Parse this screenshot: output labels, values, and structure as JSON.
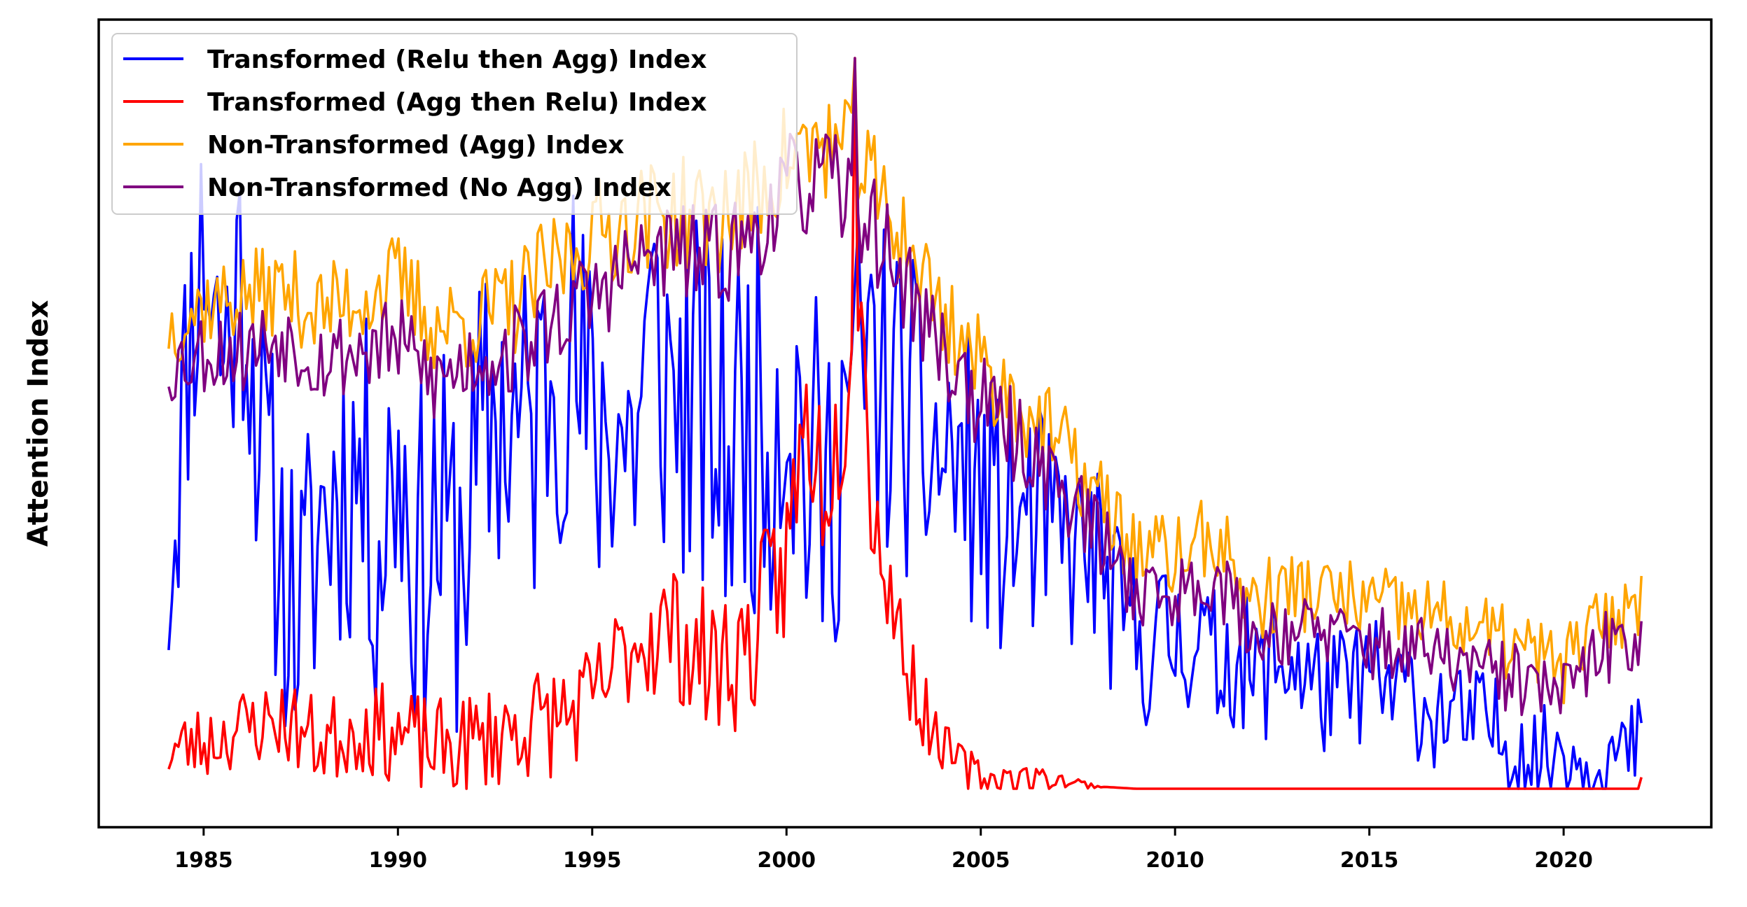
{
  "chart_data": {
    "type": "line",
    "title": "",
    "xlabel": "",
    "ylabel": "Attention Index",
    "xlim": [
      1982.3,
      2023.8
    ],
    "ylim": [
      -0.05,
      1.0
    ],
    "y_tick_labels_shown": false,
    "grid": false,
    "legend_position": "upper-left",
    "x_ticks": [
      1985,
      1990,
      1995,
      2000,
      2005,
      2010,
      2015,
      2020
    ],
    "x_tick_labels": [
      "1985",
      "1990",
      "1995",
      "2000",
      "2005",
      "2010",
      "2015",
      "2020"
    ],
    "start_year": 1984.1,
    "step_years": 0.0833,
    "series": [
      {
        "name": "Transformed (Relu then Agg) Index",
        "color": "#0000ff",
        "anchors": [
          [
            1984.1,
            0.28
          ],
          [
            1984.3,
            0.4
          ],
          [
            1984.7,
            0.62
          ],
          [
            1985.0,
            0.72
          ],
          [
            1985.5,
            0.56
          ],
          [
            1986.0,
            0.68
          ],
          [
            1986.5,
            0.44
          ],
          [
            1987.0,
            0.3
          ],
          [
            1987.5,
            0.22
          ],
          [
            1988.0,
            0.35
          ],
          [
            1988.5,
            0.4
          ],
          [
            1989.0,
            0.42
          ],
          [
            1989.5,
            0.31
          ],
          [
            1990.0,
            0.45
          ],
          [
            1990.5,
            0.28
          ],
          [
            1991.0,
            0.35
          ],
          [
            1991.5,
            0.3
          ],
          [
            1992.0,
            0.4
          ],
          [
            1992.5,
            0.5
          ],
          [
            1993.0,
            0.47
          ],
          [
            1993.5,
            0.46
          ],
          [
            1994.0,
            0.58
          ],
          [
            1994.5,
            0.56
          ],
          [
            1995.0,
            0.45
          ],
          [
            1995.5,
            0.5
          ],
          [
            1996.0,
            0.44
          ],
          [
            1996.5,
            0.58
          ],
          [
            1997.0,
            0.52
          ],
          [
            1997.5,
            0.5
          ],
          [
            1998.0,
            0.48
          ],
          [
            1998.5,
            0.44
          ],
          [
            1999.0,
            0.5
          ],
          [
            1999.5,
            0.48
          ],
          [
            2000.0,
            0.55
          ],
          [
            2000.5,
            0.42
          ],
          [
            2001.0,
            0.36
          ],
          [
            2001.5,
            0.5
          ],
          [
            2002.0,
            0.55
          ],
          [
            2002.5,
            0.52
          ],
          [
            2003.0,
            0.5
          ],
          [
            2003.5,
            0.44
          ],
          [
            2004.0,
            0.43
          ],
          [
            2004.5,
            0.42
          ],
          [
            2005.0,
            0.38
          ],
          [
            2005.5,
            0.34
          ],
          [
            2006.0,
            0.35
          ],
          [
            2006.5,
            0.34
          ],
          [
            2007.0,
            0.32
          ],
          [
            2007.5,
            0.31
          ],
          [
            2008.0,
            0.3
          ],
          [
            2008.5,
            0.22
          ],
          [
            2009.0,
            0.2
          ],
          [
            2009.5,
            0.19
          ],
          [
            2010.0,
            0.19
          ],
          [
            2010.5,
            0.21
          ],
          [
            2011.0,
            0.16
          ],
          [
            2011.5,
            0.18
          ],
          [
            2012.0,
            0.14
          ],
          [
            2012.5,
            0.16
          ],
          [
            2013.0,
            0.17
          ],
          [
            2013.5,
            0.14
          ],
          [
            2014.0,
            0.12
          ],
          [
            2014.5,
            0.13
          ],
          [
            2015.0,
            0.15
          ],
          [
            2015.5,
            0.12
          ],
          [
            2016.0,
            0.13
          ],
          [
            2016.5,
            0.1
          ],
          [
            2017.0,
            0.1
          ],
          [
            2017.5,
            0.08
          ],
          [
            2018.0,
            0.09
          ],
          [
            2018.5,
            0.06
          ],
          [
            2019.0,
            0.05
          ],
          [
            2019.5,
            0.04
          ],
          [
            2020.0,
            0.06
          ],
          [
            2020.5,
            0.03
          ],
          [
            2021.0,
            0.05
          ],
          [
            2021.5,
            0.04
          ],
          [
            2022.0,
            0.06
          ]
        ],
        "amplitude": [
          [
            1984.1,
            0.12
          ],
          [
            1990.0,
            0.15
          ],
          [
            2000.0,
            0.17
          ],
          [
            2004.0,
            0.13
          ],
          [
            2008.0,
            0.08
          ],
          [
            2012.0,
            0.06
          ],
          [
            2018.0,
            0.045
          ],
          [
            2022.0,
            0.04
          ]
        ],
        "clip_min": 0.0,
        "seed": 11
      },
      {
        "name": "Transformed (Agg then Relu) Index",
        "color": "#ff0000",
        "anchors": [
          [
            1984.1,
            0.05
          ],
          [
            1985.0,
            0.06
          ],
          [
            1986.0,
            0.08
          ],
          [
            1987.0,
            0.09
          ],
          [
            1988.0,
            0.06
          ],
          [
            1989.0,
            0.08
          ],
          [
            1990.0,
            0.07
          ],
          [
            1991.0,
            0.05
          ],
          [
            1992.0,
            0.06
          ],
          [
            1993.0,
            0.08
          ],
          [
            1994.0,
            0.09
          ],
          [
            1995.0,
            0.11
          ],
          [
            1996.0,
            0.19
          ],
          [
            1997.0,
            0.21
          ],
          [
            1998.0,
            0.16
          ],
          [
            1999.0,
            0.18
          ],
          [
            2000.0,
            0.3
          ],
          [
            2000.5,
            0.48
          ],
          [
            2001.0,
            0.4
          ],
          [
            2001.5,
            0.5
          ],
          [
            2001.8,
            0.72
          ],
          [
            2002.2,
            0.38
          ],
          [
            2002.8,
            0.22
          ],
          [
            2003.3,
            0.13
          ],
          [
            2003.8,
            0.07
          ],
          [
            2004.5,
            0.03
          ],
          [
            2005.3,
            0.012
          ],
          [
            2006.0,
            0.015
          ],
          [
            2007.0,
            0.012
          ],
          [
            2008.0,
            0.003
          ],
          [
            2009.0,
            0.0
          ],
          [
            2022.0,
            0.0
          ]
        ],
        "amplitude": [
          [
            1984.1,
            0.03
          ],
          [
            1996.0,
            0.05
          ],
          [
            2000.0,
            0.07
          ],
          [
            2002.5,
            0.06
          ],
          [
            2004.0,
            0.02
          ],
          [
            2007.0,
            0.008
          ],
          [
            2008.2,
            0.0
          ],
          [
            2022.0,
            0.0
          ]
        ],
        "clip_min": 0.0,
        "spikes": [
          [
            2001.75,
            0.95
          ],
          [
            2022.0,
            0.015
          ]
        ],
        "seed": 23
      },
      {
        "name": "Non-Transformed (Agg) Index",
        "color": "#ffa500",
        "anchors": [
          [
            1984.1,
            0.6
          ],
          [
            1985.0,
            0.63
          ],
          [
            1986.0,
            0.64
          ],
          [
            1987.0,
            0.65
          ],
          [
            1988.0,
            0.62
          ],
          [
            1989.0,
            0.64
          ],
          [
            1990.0,
            0.66
          ],
          [
            1991.0,
            0.6
          ],
          [
            1992.0,
            0.61
          ],
          [
            1993.0,
            0.63
          ],
          [
            1994.0,
            0.68
          ],
          [
            1995.0,
            0.72
          ],
          [
            1996.0,
            0.74
          ],
          [
            1997.0,
            0.75
          ],
          [
            1998.0,
            0.74
          ],
          [
            1999.0,
            0.76
          ],
          [
            2000.0,
            0.82
          ],
          [
            2001.0,
            0.84
          ],
          [
            2002.0,
            0.8
          ],
          [
            2003.0,
            0.72
          ],
          [
            2004.0,
            0.62
          ],
          [
            2005.0,
            0.55
          ],
          [
            2006.0,
            0.5
          ],
          [
            2007.0,
            0.45
          ],
          [
            2008.0,
            0.38
          ],
          [
            2009.0,
            0.31
          ],
          [
            2010.0,
            0.3
          ],
          [
            2011.0,
            0.33
          ],
          [
            2012.0,
            0.24
          ],
          [
            2013.0,
            0.26
          ],
          [
            2014.0,
            0.25
          ],
          [
            2015.0,
            0.24
          ],
          [
            2016.0,
            0.23
          ],
          [
            2017.0,
            0.22
          ],
          [
            2018.0,
            0.2
          ],
          [
            2019.0,
            0.18
          ],
          [
            2020.0,
            0.16
          ],
          [
            2021.0,
            0.22
          ],
          [
            2022.0,
            0.24
          ]
        ],
        "amplitude": [
          [
            1984.1,
            0.035
          ],
          [
            1995.0,
            0.045
          ],
          [
            2001.0,
            0.05
          ],
          [
            2005.0,
            0.04
          ],
          [
            2010.0,
            0.035
          ],
          [
            2022.0,
            0.03
          ]
        ],
        "clip_min": 0.1,
        "spikes": [
          [
            2001.75,
            0.95
          ]
        ],
        "seed": 37
      },
      {
        "name": "Non-Transformed (No Agg) Index",
        "color": "#800080",
        "anchors": [
          [
            1984.1,
            0.55
          ],
          [
            1985.0,
            0.57
          ],
          [
            1986.0,
            0.57
          ],
          [
            1987.0,
            0.59
          ],
          [
            1988.0,
            0.56
          ],
          [
            1989.0,
            0.57
          ],
          [
            1990.0,
            0.58
          ],
          [
            1991.0,
            0.53
          ],
          [
            1992.0,
            0.56
          ],
          [
            1993.0,
            0.57
          ],
          [
            1994.0,
            0.61
          ],
          [
            1995.0,
            0.64
          ],
          [
            1996.0,
            0.68
          ],
          [
            1997.0,
            0.7
          ],
          [
            1998.0,
            0.69
          ],
          [
            1999.0,
            0.71
          ],
          [
            2000.0,
            0.78
          ],
          [
            2001.0,
            0.79
          ],
          [
            2002.0,
            0.75
          ],
          [
            2003.0,
            0.66
          ],
          [
            2004.0,
            0.57
          ],
          [
            2005.0,
            0.5
          ],
          [
            2006.0,
            0.45
          ],
          [
            2007.0,
            0.4
          ],
          [
            2008.0,
            0.33
          ],
          [
            2009.0,
            0.26
          ],
          [
            2010.0,
            0.25
          ],
          [
            2011.0,
            0.28
          ],
          [
            2012.0,
            0.2
          ],
          [
            2013.0,
            0.21
          ],
          [
            2014.0,
            0.2
          ],
          [
            2015.0,
            0.19
          ],
          [
            2016.0,
            0.18
          ],
          [
            2017.0,
            0.17
          ],
          [
            2018.0,
            0.15
          ],
          [
            2019.0,
            0.14
          ],
          [
            2020.0,
            0.12
          ],
          [
            2021.0,
            0.18
          ],
          [
            2022.0,
            0.2
          ]
        ],
        "amplitude": [
          [
            1984.1,
            0.035
          ],
          [
            1995.0,
            0.04
          ],
          [
            2001.0,
            0.045
          ],
          [
            2005.0,
            0.04
          ],
          [
            2010.0,
            0.03
          ],
          [
            2022.0,
            0.03
          ]
        ],
        "clip_min": 0.05,
        "spikes": [
          [
            2001.75,
            0.95
          ]
        ],
        "seed": 53
      }
    ]
  }
}
